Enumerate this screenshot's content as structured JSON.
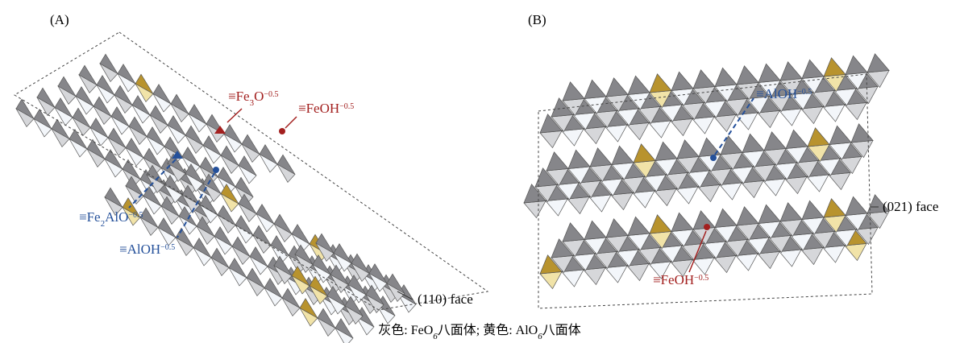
{
  "panels": [
    {
      "label": "(A)",
      "annotations": [
        {
          "parts": [
            "≡Fe",
            "3",
            "O",
            "−0.5"
          ]
        },
        {
          "parts": [
            "≡FeOH",
            "−0.5"
          ]
        },
        {
          "parts": [
            "≡Fe",
            "2",
            "AlO",
            "−0.5"
          ]
        },
        {
          "parts": [
            "≡AlOH",
            "−0.5"
          ]
        }
      ],
      "face": "(110) face"
    },
    {
      "label": "(B)",
      "annotations": [
        {
          "parts": [
            "≡AlOH",
            "−0.5"
          ]
        },
        {
          "parts": [
            "≡FeOH",
            "−0.5"
          ]
        }
      ],
      "face": "(021) face"
    }
  ],
  "caption": {
    "parts": [
      "灰色: FeO",
      "6",
      "八面体; 黄色: AlO",
      "6",
      "八面体"
    ]
  }
}
